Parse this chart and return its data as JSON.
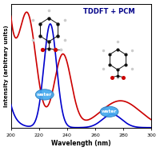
{
  "title": "TDDFT + PCM",
  "xlabel": "Wavelength (nm)",
  "ylabel": "Intensity (arbitrary units)",
  "xlim": [
    200,
    300
  ],
  "ylim": [
    0,
    1.05
  ],
  "background_color": "#ffffff",
  "blue_color": "#0000cc",
  "red_color": "#cc0000",
  "title_color": "#000088",
  "water_face_color": "#44aaee",
  "water_edge_color": "#2277bb"
}
